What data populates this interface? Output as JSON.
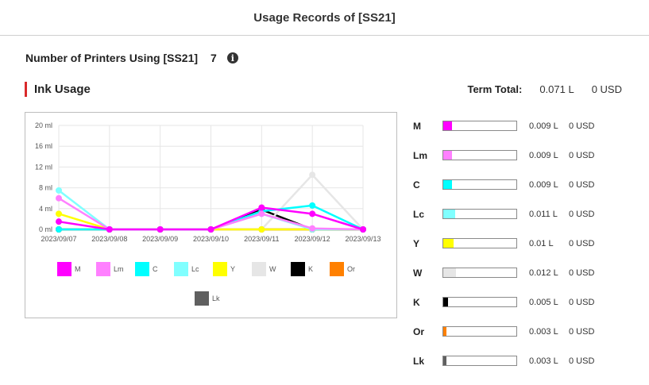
{
  "header": {
    "title": "Usage Records of [SS21]"
  },
  "printers": {
    "label": "Number of Printers Using [SS21]",
    "count": "7",
    "info_icon": "info-icon"
  },
  "ink": {
    "title": "Ink Usage"
  },
  "term_total": {
    "label": "Term Total:",
    "liters": "0.071 L",
    "usd": "0 USD"
  },
  "usage": [
    {
      "code": "M",
      "color": "#ff00ff",
      "liters": "0.009 L",
      "usd": "0 USD",
      "level": 0.12
    },
    {
      "code": "Lm",
      "color": "#ff80ff",
      "liters": "0.009 L",
      "usd": "0 USD",
      "level": 0.12
    },
    {
      "code": "C",
      "color": "#00ffff",
      "liters": "0.009 L",
      "usd": "0 USD",
      "level": 0.12
    },
    {
      "code": "Lc",
      "color": "#80ffff",
      "liters": "0.011 L",
      "usd": "0 USD",
      "level": 0.16
    },
    {
      "code": "Y",
      "color": "#ffff00",
      "liters": "0.01 L",
      "usd": "0 USD",
      "level": 0.14
    },
    {
      "code": "W",
      "color": "#e6e6e6",
      "liters": "0.012 L",
      "usd": "0 USD",
      "level": 0.17
    },
    {
      "code": "K",
      "color": "#000000",
      "liters": "0.005 L",
      "usd": "0 USD",
      "level": 0.07
    },
    {
      "code": "Or",
      "color": "#ff8000",
      "liters": "0.003 L",
      "usd": "0 USD",
      "level": 0.04
    },
    {
      "code": "Lk",
      "color": "#606060",
      "liters": "0.003 L",
      "usd": "0 USD",
      "level": 0.04
    }
  ],
  "chart_data": {
    "type": "line",
    "categories": [
      "2023/09/07",
      "2023/09/08",
      "2023/09/09",
      "2023/09/10",
      "2023/09/11",
      "2023/09/12",
      "2023/09/13"
    ],
    "y_ticks": [
      "20 ml",
      "16 ml",
      "12 ml",
      "8 ml",
      "4 ml",
      "0 ml"
    ],
    "ylim": [
      0,
      20
    ],
    "grid": true,
    "legend_position": "bottom",
    "series": [
      {
        "name": "M",
        "color": "#ff00ff",
        "values": [
          1.5,
          0,
          0,
          0,
          4.2,
          3.0,
          0
        ]
      },
      {
        "name": "Lm",
        "color": "#ff80ff",
        "values": [
          6.0,
          0,
          0,
          0,
          3.0,
          0.2,
          0
        ]
      },
      {
        "name": "C",
        "color": "#00ffff",
        "values": [
          0,
          0,
          0,
          0,
          3.5,
          4.6,
          0
        ]
      },
      {
        "name": "Lc",
        "color": "#80ffff",
        "values": [
          7.5,
          0,
          0,
          0,
          3.0,
          0,
          0
        ]
      },
      {
        "name": "Y",
        "color": "#ffff00",
        "values": [
          3.0,
          0,
          0,
          0,
          0,
          0,
          0
        ]
      },
      {
        "name": "W",
        "color": "#e6e6e6",
        "values": [
          0,
          0,
          0,
          0,
          0,
          10.5,
          0
        ]
      },
      {
        "name": "K",
        "color": "#000000",
        "values": [
          0,
          0,
          0,
          0,
          3.8,
          0,
          0
        ]
      },
      {
        "name": "Or",
        "color": "#ff8000",
        "values": [
          0,
          0,
          0,
          0,
          0,
          0,
          0
        ]
      },
      {
        "name": "Lk",
        "color": "#606060",
        "values": [
          0,
          0,
          0,
          0,
          0,
          0,
          0
        ]
      }
    ]
  }
}
